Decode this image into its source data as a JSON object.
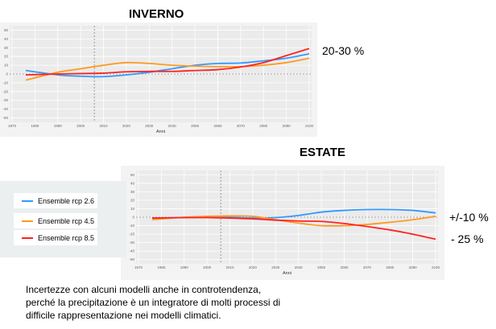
{
  "chart_data": [
    {
      "type": "line",
      "title": "INVERNO",
      "xlabel": "Anni",
      "ylabel": "",
      "xlim": [
        1970,
        2100
      ],
      "ylim": [
        -55,
        55
      ],
      "xticks": [
        1970,
        1980,
        1990,
        2000,
        2010,
        2020,
        2030,
        2040,
        2050,
        2060,
        2070,
        2080,
        2090,
        2100
      ],
      "yticks": [
        -50,
        -40,
        -30,
        -20,
        -10,
        0,
        10,
        20,
        30,
        40,
        50
      ],
      "reference_year": 2006,
      "grid": true,
      "x": [
        1976,
        1990,
        2000,
        2010,
        2020,
        2030,
        2040,
        2050,
        2060,
        2070,
        2080,
        2090,
        2100
      ],
      "series": [
        {
          "name": "Ensemble rcp 2.6",
          "color": "#3399ff",
          "values": [
            4,
            -1,
            -2.5,
            -3,
            -1,
            2,
            6,
            10,
            12,
            12.5,
            15,
            18,
            23
          ]
        },
        {
          "name": "Ensemble rcp 4.5",
          "color": "#ff9922",
          "values": [
            -7,
            2,
            6,
            10,
            13,
            12,
            10,
            9,
            8.5,
            8.5,
            10,
            13,
            18
          ]
        },
        {
          "name": "Ensemble rcp 8.5",
          "color": "#ff2222",
          "values": [
            -1,
            0,
            0.5,
            1,
            2.5,
            3,
            3,
            4,
            5,
            8,
            13,
            21,
            29
          ]
        }
      ],
      "annotation": "20-30 %"
    },
    {
      "type": "line",
      "title": "ESTATE",
      "xlabel": "Anni",
      "ylabel": "",
      "xlim": [
        1970,
        2100
      ],
      "ylim": [
        -55,
        55
      ],
      "xticks": [
        1970,
        1980,
        1990,
        2000,
        2010,
        2020,
        2030,
        2040,
        2050,
        2060,
        2070,
        2080,
        2090,
        2100
      ],
      "yticks": [
        -50,
        -40,
        -30,
        -20,
        -10,
        0,
        10,
        20,
        30,
        40,
        50
      ],
      "reference_year": 2006,
      "grid": true,
      "x": [
        1976,
        1990,
        2000,
        2010,
        2020,
        2030,
        2040,
        2050,
        2060,
        2070,
        2080,
        2090,
        2100
      ],
      "series": [
        {
          "name": "Ensemble rcp 2.6",
          "color": "#3399ff",
          "values": [
            -1,
            -0.5,
            0,
            0,
            -1,
            -0.5,
            2,
            6,
            8,
            9,
            9,
            8,
            5
          ]
        },
        {
          "name": "Ensemble rcp 4.5",
          "color": "#ff9922",
          "values": [
            -3,
            0,
            1,
            1.5,
            1,
            -3,
            -7,
            -10,
            -10,
            -8.5,
            -6,
            -3,
            1
          ]
        },
        {
          "name": "Ensemble rcp 8.5",
          "color": "#ff2222",
          "values": [
            -1,
            -0.5,
            -0.5,
            -1,
            -2,
            -3.5,
            -4.5,
            -5,
            -7.5,
            -11,
            -15,
            -20,
            -26
          ]
        }
      ],
      "annotations": [
        "+/-10 %",
        "- 25 %"
      ]
    }
  ],
  "legend": [
    {
      "label": "Ensemble rcp 2.6",
      "color": "#3399ff"
    },
    {
      "label": "Ensemble rcp 4.5",
      "color": "#ff9922"
    },
    {
      "label": "Ensemble rcp 8.5",
      "color": "#ff2222"
    }
  ],
  "note_lines": [
    "Incertezze con alcuni modelli anche in controtendenza,",
    "perché la precipitazione è un integratore di molti processi di",
    "difficile rappresentazione nei modelli climatici."
  ]
}
